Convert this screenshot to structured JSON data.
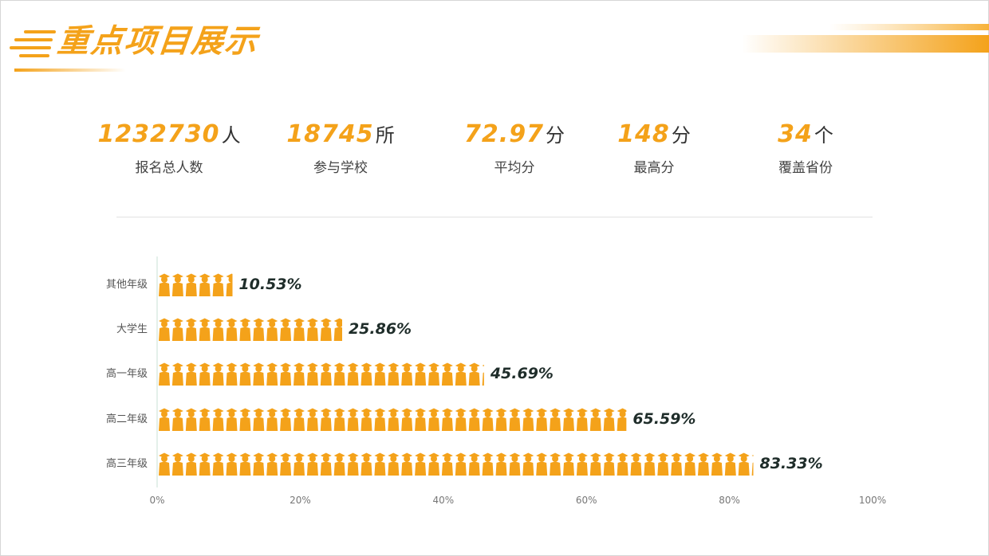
{
  "header": {
    "title": "重点项目展示",
    "accent_color": "#f4a21a"
  },
  "stats": [
    {
      "value": "1232730",
      "unit": "人",
      "label": "报名总人数"
    },
    {
      "value": "18745",
      "unit": "所",
      "label": "参与学校"
    },
    {
      "value": "72.97",
      "unit": "分",
      "label": "平均分"
    },
    {
      "value": "148",
      "unit": "分",
      "label": "最高分"
    },
    {
      "value": "34",
      "unit": "个",
      "label": "覆盖省份"
    }
  ],
  "chart_data": {
    "type": "bar",
    "orientation": "horizontal",
    "icon": "graduate-person-icon",
    "categories": [
      "其他年级",
      "大学生",
      "高一年级",
      "高二年级",
      "高三年级"
    ],
    "values": [
      10.53,
      25.86,
      45.69,
      65.59,
      83.33
    ],
    "value_labels": [
      "10.53%",
      "25.86%",
      "45.69%",
      "65.59%",
      "83.33%"
    ],
    "x_ticks": [
      "0%",
      "20%",
      "40%",
      "60%",
      "80%",
      "100%"
    ],
    "xlim": [
      0,
      100
    ],
    "bar_color": "#f4a21a",
    "label_color": "#1f2d2a"
  }
}
